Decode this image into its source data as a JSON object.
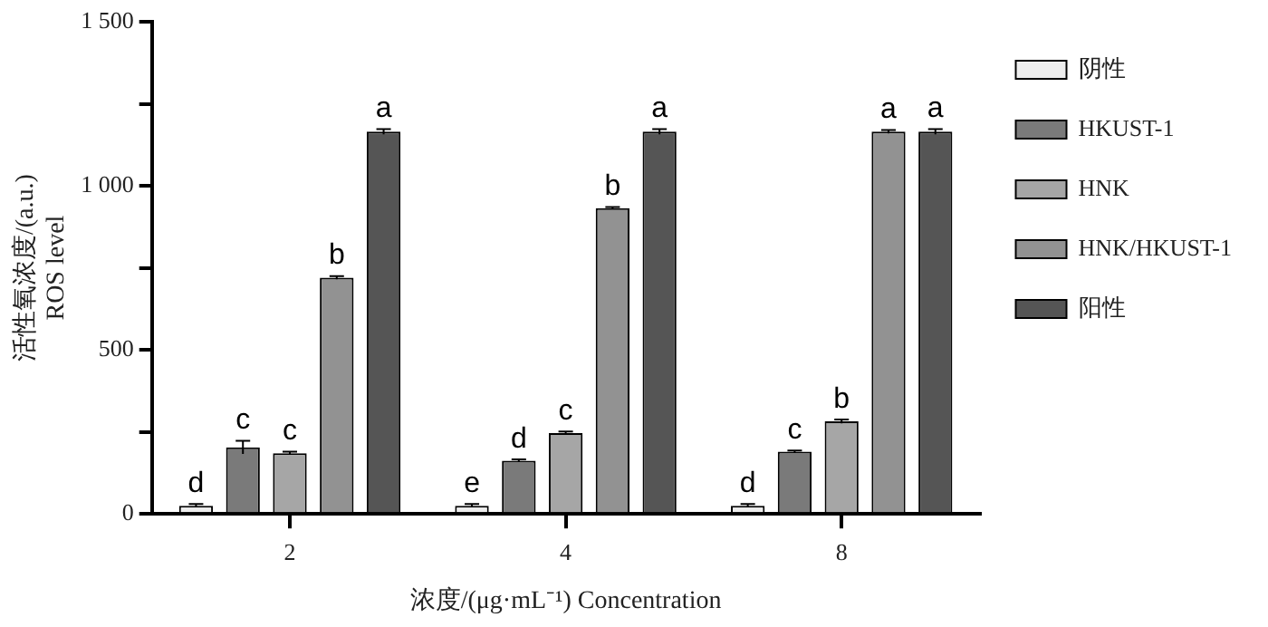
{
  "chart_data": {
    "type": "bar",
    "ylabel": "活性氧浓度/(a.u.)\nROS level",
    "xlabel": "浓度/(μg·mL⁻¹) Concentration",
    "categories": [
      "2",
      "4",
      "8"
    ],
    "series": [
      {
        "name": "阴性",
        "color": "#eeeeee",
        "values": [
          25,
          25,
          25
        ],
        "errors": [
          5,
          5,
          5
        ],
        "value_labels": [
          "d",
          "e",
          "d"
        ]
      },
      {
        "name": "HKUST-1",
        "color": "#7a7a7a",
        "values": [
          203,
          162,
          190
        ],
        "errors": [
          20,
          4,
          3
        ],
        "value_labels": [
          "c",
          "d",
          "c"
        ]
      },
      {
        "name": "HNK",
        "color": "#a6a6a6",
        "values": [
          185,
          246,
          282
        ],
        "errors": [
          5,
          5,
          6
        ],
        "value_labels": [
          "c",
          "c",
          "b"
        ]
      },
      {
        "name": "HNK/HKUST-1",
        "color": "#929292",
        "values": [
          720,
          932,
          1165
        ],
        "errors": [
          5,
          3,
          5
        ],
        "value_labels": [
          "b",
          "b",
          "a"
        ]
      },
      {
        "name": "阳性",
        "color": "#555555",
        "values": [
          1165,
          1165,
          1165
        ],
        "errors": [
          8,
          8,
          8
        ],
        "value_labels": [
          "a",
          "a",
          "a"
        ]
      }
    ],
    "ylim": [
      0,
      1500
    ],
    "yticks": [
      0,
      {
        "value": 250,
        "label": null
      },
      500,
      {
        "value": 750,
        "label": null
      },
      {
        "value": 1000,
        "label": "1 000"
      },
      {
        "value": 1250,
        "label": null
      },
      {
        "value": 1500,
        "label": "1 500"
      }
    ],
    "grid": false,
    "legend": "right"
  }
}
